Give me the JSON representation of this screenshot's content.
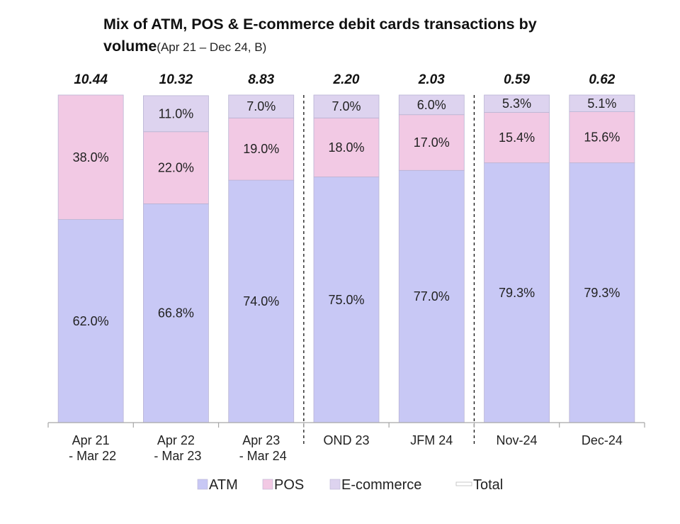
{
  "title": {
    "main_line1": "Mix of ATM, POS & E-commerce debit cards transactions by",
    "main_line2": "volume",
    "subtitle": "(Apr 21 – Dec 24, B)"
  },
  "chart_data": {
    "type": "bar",
    "stacked": true,
    "title": "Mix of ATM, POS & E-commerce debit cards transactions by volume",
    "subtitle": "(Apr 21 – Dec 24, B)",
    "categories": [
      [
        "Apr 21",
        " - Mar 22"
      ],
      [
        "Apr 22",
        " - Mar 23"
      ],
      [
        "Apr 23",
        " - Mar 24"
      ],
      [
        "OND 23"
      ],
      [
        "JFM 24"
      ],
      [
        "Nov-24"
      ],
      [
        "Dec-24"
      ]
    ],
    "series": [
      {
        "name": "ATM",
        "color": "#c8c8f5",
        "values": [
          62.0,
          66.8,
          74.0,
          75.0,
          77.0,
          79.3,
          79.3
        ],
        "labels": [
          "62.0%",
          "66.8%",
          "74.0%",
          "75.0%",
          "77.0%",
          "79.3%",
          "79.3%"
        ]
      },
      {
        "name": "POS",
        "color": "#f2c9e4",
        "values": [
          38.0,
          22.0,
          19.0,
          18.0,
          17.0,
          15.4,
          15.6
        ],
        "labels": [
          "38.0%",
          "22.0%",
          "19.0%",
          "18.0%",
          "17.0%",
          "15.4%",
          "15.6%"
        ]
      },
      {
        "name": "E-commerce",
        "color": "#ddd3ef",
        "values": [
          0,
          11.0,
          7.0,
          7.0,
          6.0,
          5.3,
          5.1
        ],
        "labels": [
          "",
          "11.0%",
          "7.0%",
          "7.0%",
          "6.0%",
          "5.3%",
          "5.1%"
        ]
      }
    ],
    "totals": {
      "name": "Total",
      "values": [
        10.44,
        10.32,
        8.83,
        2.2,
        2.03,
        0.59,
        0.62
      ],
      "labels": [
        "10.44",
        "10.32",
        "8.83",
        "2.20",
        "2.03",
        "0.59",
        "0.62"
      ]
    },
    "ylim": [
      0,
      100
    ],
    "grid": false,
    "legend": "bottom",
    "separators_after_category": [
      2,
      4
    ]
  }
}
